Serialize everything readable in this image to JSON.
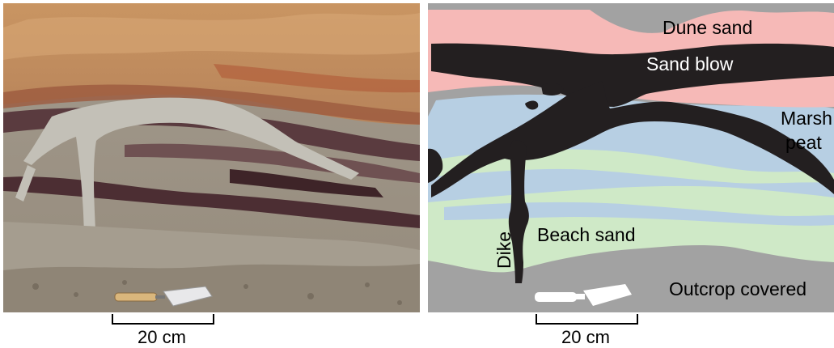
{
  "photo": {
    "scale_label": "20 cm"
  },
  "diagram": {
    "labels": {
      "dune_sand": "Dune sand",
      "sand_blow": "Sand blow",
      "marsh_peat_line1": "Marsh",
      "marsh_peat_line2": "peat",
      "beach_sand": "Beach sand",
      "dike": "Dike",
      "outcrop_covered": "Outcrop covered"
    },
    "scale_label": "20 cm",
    "colors": {
      "dune_sand": "#f6b9b7",
      "marsh_peat": "#b7cfe3",
      "beach_sand": "#cfe9c7",
      "sand_blow_dike": "#231f20",
      "outcrop_covered": "#a2a2a2",
      "trowel": "#ffffff"
    }
  }
}
